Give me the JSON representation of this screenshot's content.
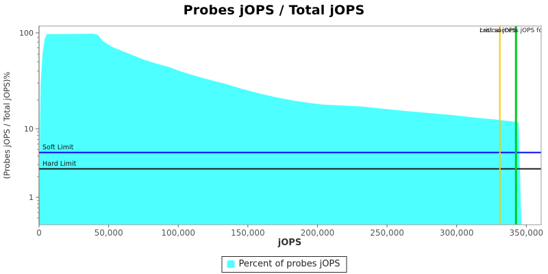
{
  "title": "Probes jOPS / Total jOPS",
  "legend": {
    "marker_color": "#4DFFFF",
    "label": "Percent of probes jOPS"
  },
  "chart_data": {
    "type": "area",
    "title": "Probes jOPS / Total jOPS",
    "xlabel": "jOPS",
    "ylabel": "(Probes jOPS / Total jOPS)%",
    "x_ticks": [
      0,
      50000,
      100000,
      150000,
      200000,
      250000,
      300000,
      350000
    ],
    "xlim": [
      0,
      360500
    ],
    "y_scale": "log",
    "y_major_ticks": [
      100,
      10,
      1
    ],
    "ylim": [
      0.4,
      117
    ],
    "grid": false,
    "legend_position": "bottom",
    "series": [
      {
        "name": "Percent of probes jOPS",
        "color": "#4DFFFF",
        "points": [
          [
            200,
            0.4
          ],
          [
            700,
            10
          ],
          [
            1200,
            30
          ],
          [
            2500,
            60
          ],
          [
            4000,
            85
          ],
          [
            5500,
            97
          ],
          [
            20000,
            97.4
          ],
          [
            39000,
            98
          ],
          [
            42000,
            96
          ],
          [
            46000,
            82
          ],
          [
            52000,
            72
          ],
          [
            60500,
            64
          ],
          [
            68000,
            58
          ],
          [
            75300,
            52.6
          ],
          [
            84000,
            48
          ],
          [
            93500,
            44
          ],
          [
            101000,
            40
          ],
          [
            109800,
            36.5
          ],
          [
            122000,
            32.5
          ],
          [
            134400,
            29.2
          ],
          [
            146000,
            26
          ],
          [
            159000,
            23.2
          ],
          [
            171000,
            21.2
          ],
          [
            183600,
            19.6
          ],
          [
            194000,
            18.6
          ],
          [
            203300,
            17.9
          ],
          [
            217000,
            17.5
          ],
          [
            231300,
            17.1
          ],
          [
            247000,
            16.2
          ],
          [
            263800,
            15.3
          ],
          [
            280000,
            14.6
          ],
          [
            296800,
            13.9
          ],
          [
            313000,
            13.1
          ],
          [
            329700,
            12.4
          ],
          [
            338000,
            12.0
          ],
          [
            342500,
            11.8
          ],
          [
            344500,
            11.6
          ],
          [
            346500,
            0.4
          ]
        ]
      }
    ],
    "h_lines": [
      {
        "label": "Soft Limit",
        "value": 4.5,
        "color": "#0202F2"
      },
      {
        "label": "Hard Limit",
        "value": 2.6,
        "color": "#1c1c1c"
      }
    ],
    "v_lines": [
      {
        "label": "critical jOPS",
        "jops": 331000,
        "color": "#FFC800"
      },
      {
        "label": "Last success jOPS for S",
        "jops": 342600,
        "color": "#00CC22"
      }
    ]
  }
}
